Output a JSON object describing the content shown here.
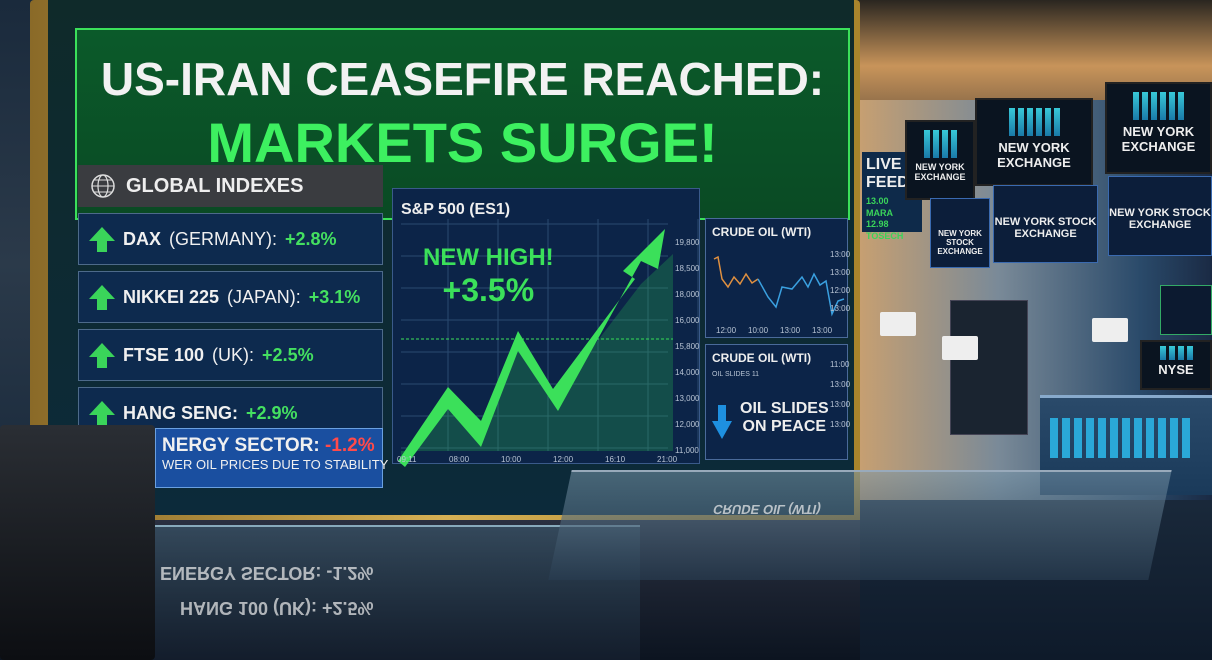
{
  "headline": {
    "line1": "US-IRAN CEASEFIRE REACHED:",
    "line2": "MARKETS SURGE!"
  },
  "global_indexes": {
    "title": "GLOBAL INDEXES",
    "items": [
      {
        "name": "DAX",
        "region": "(GERMANY):",
        "change": "+2.8%"
      },
      {
        "name": "NIKKEI 225",
        "region": "(JAPAN):",
        "change": "+3.1%"
      },
      {
        "name": "FTSE 100",
        "region": "(UK):",
        "change": "+2.5%"
      },
      {
        "name": "HANG SENG:",
        "region": "",
        "change": "+2.9%"
      }
    ],
    "energy": {
      "label": "NERGY SECTOR:",
      "change": "-1.2%",
      "note": "WER OIL PRICES DUE TO STABILITY"
    }
  },
  "sp500": {
    "title": "S&P 500 (ES1)",
    "headline": "NEW HIGH!",
    "change": "+3.5%",
    "x_ticks": [
      "09:11",
      "08:00",
      "10:00",
      "12:00",
      "16:10",
      "21:00"
    ],
    "y_ticks": [
      "19,800",
      "18,500",
      "18,000",
      "16,000",
      "15,800",
      "14,000",
      "13,000",
      "12,000",
      "11,000"
    ]
  },
  "crude_oil_1": {
    "title": "CRUDE OIL (WTI)",
    "x_ticks": [
      "12:00",
      "10:00",
      "13:00",
      "13:00"
    ],
    "y_ticks": [
      "13:00",
      "13:00",
      "12:00",
      "13:00"
    ]
  },
  "crude_oil_2": {
    "title": "CRUDE OIL (WTI)",
    "sub": "OIL SLIDES 11",
    "message_1": "OIL SLIDES",
    "message_2": "ON PEACE",
    "y_ticks": [
      "11:00",
      "13:00",
      "13:00",
      "13:00"
    ]
  },
  "studio": {
    "live_1": "LIVE",
    "live_2": "FEED",
    "ticker_1": "13.00  MARA",
    "ticker_2": "12.98  TOSECH",
    "monitor_1": "NEW YORK EXCHANGE",
    "monitor_2": "NEW YORK EXCHANGE",
    "monitor_3": "NEW YORK EXCHANGE",
    "sub_1": "NEW YORK STOCK EXCHANGE",
    "sub_2": "NEW YORK STOCK EXCHANGE",
    "sub_3": "NEW YORK STOCK EXCHANGE",
    "nyse": "NYSE"
  },
  "reflections": {
    "r1": "ENERGY SECTOR: -1.2%",
    "r2": "HANG 100 (UK): +2.5%",
    "r3": "CRUDE OIL (WTI)"
  },
  "colors": {
    "up": "#3ad45a",
    "down": "#ff4a4a",
    "accent": "#3be05a"
  }
}
